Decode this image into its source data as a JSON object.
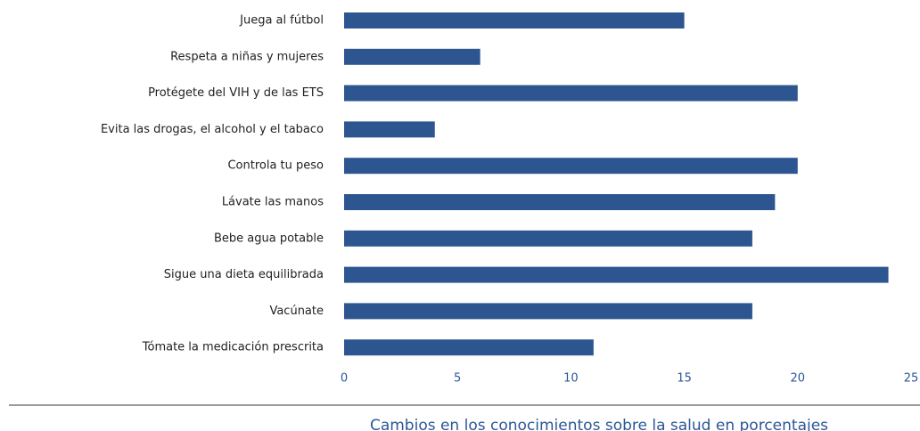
{
  "chart_data": {
    "type": "barh",
    "categories": [
      "Juega al fútbol",
      "Respeta a niñas y mujeres",
      "Protégete del VIH y de las ETS",
      "Evita las drogas, el alcohol y el tabaco",
      "Controla tu peso",
      "Lávate las manos",
      "Bebe agua potable",
      "Sigue una dieta equilibrada",
      "Vacúnate",
      "Tómate la medicación prescrita"
    ],
    "values": [
      15,
      6,
      20,
      4,
      20,
      19,
      18,
      24,
      18,
      11
    ],
    "color": "#2d5690",
    "xlabel": "Cambios en los conocimientos sobre la salud en porcentajes",
    "xlim": [
      0,
      25
    ],
    "xticks": [
      0,
      5,
      10,
      15,
      20,
      25
    ],
    "grid": false
  }
}
